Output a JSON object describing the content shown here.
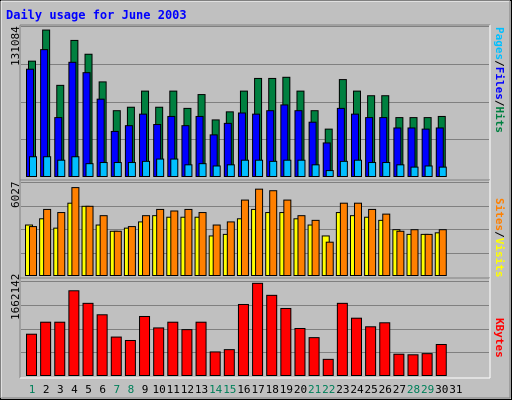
{
  "chart_data": [
    {
      "type": "bar",
      "panel": "hits-files-pages",
      "title": "Daily usage for June 2003",
      "y_label_max": "131084",
      "ylim": [
        0,
        131084
      ],
      "grid": true,
      "categories": [
        "1",
        "2",
        "3",
        "4",
        "5",
        "6",
        "7",
        "8",
        "9",
        "10",
        "11",
        "12",
        "13",
        "14",
        "15",
        "16",
        "17",
        "18",
        "19",
        "20",
        "21",
        "22",
        "23",
        "24",
        "25",
        "26",
        "27",
        "28",
        "29",
        "30",
        "31"
      ],
      "weekend_days": [
        "1",
        "7",
        "8",
        "14",
        "15",
        "21",
        "22",
        "28",
        "29"
      ],
      "legend": [
        "Pages",
        "Files",
        "Hits"
      ],
      "series": [
        {
          "name": "Hits",
          "color": "#008040",
          "values": [
            101000,
            128000,
            80000,
            119000,
            107000,
            83000,
            58000,
            61000,
            75000,
            61000,
            75000,
            60000,
            72000,
            50000,
            57000,
            75000,
            86000,
            86000,
            87000,
            75000,
            58000,
            42000,
            85000,
            75000,
            71000,
            71000,
            52000,
            52000,
            52000,
            53000,
            0
          ]
        },
        {
          "name": "Files",
          "color": "#0000ff",
          "values": [
            94000,
            111000,
            52000,
            100000,
            91000,
            68000,
            40000,
            45000,
            55000,
            46000,
            53000,
            45000,
            53000,
            37000,
            47000,
            56000,
            55000,
            58000,
            63000,
            58000,
            48000,
            30000,
            60000,
            55000,
            52000,
            52000,
            43000,
            43000,
            42000,
            43000,
            0
          ]
        },
        {
          "name": "Pages",
          "color": "#00bfff",
          "values": [
            18000,
            18000,
            15000,
            18000,
            12000,
            13000,
            13000,
            13000,
            14000,
            16000,
            16000,
            11000,
            12000,
            10000,
            11000,
            15000,
            15000,
            14000,
            15000,
            15000,
            11000,
            6000,
            14000,
            15000,
            13000,
            13000,
            11000,
            9000,
            10000,
            9000,
            0
          ]
        }
      ]
    },
    {
      "type": "bar",
      "panel": "visits-sites",
      "y_label_max": "6027",
      "ylim": [
        0,
        6027
      ],
      "legend": [
        "Sites",
        "Visits"
      ],
      "series": [
        {
          "name": "Visits",
          "color": "#ffff00",
          "values": [
            3300,
            3700,
            3100,
            4700,
            4500,
            3300,
            2900,
            3100,
            3500,
            3900,
            3800,
            3800,
            3800,
            2600,
            2700,
            3700,
            4300,
            4100,
            4100,
            3700,
            3300,
            2600,
            4100,
            3900,
            3800,
            3600,
            3000,
            2700,
            2700,
            2800,
            0
          ]
        },
        {
          "name": "Sites",
          "color": "#ff8000",
          "values": [
            3200,
            4300,
            4100,
            5700,
            4500,
            3900,
            2900,
            3200,
            3900,
            4300,
            4200,
            4300,
            4100,
            3300,
            3500,
            4900,
            5600,
            5500,
            4900,
            3900,
            3600,
            2200,
            4700,
            4700,
            4300,
            4000,
            2900,
            3000,
            2700,
            3000,
            0
          ]
        }
      ]
    },
    {
      "type": "bar",
      "panel": "kbytes",
      "y_label_max": "1662142",
      "ylim": [
        0,
        1662142
      ],
      "legend": [
        "KBytes"
      ],
      "series": [
        {
          "name": "KBytes",
          "color": "#ff0000",
          "values": [
            740000,
            950000,
            950000,
            1500000,
            1280000,
            1080000,
            690000,
            630000,
            1050000,
            850000,
            950000,
            820000,
            950000,
            430000,
            470000,
            1260000,
            1630000,
            1420000,
            1190000,
            840000,
            680000,
            300000,
            1280000,
            1020000,
            870000,
            940000,
            390000,
            380000,
            400000,
            560000,
            0
          ]
        }
      ]
    }
  ]
}
